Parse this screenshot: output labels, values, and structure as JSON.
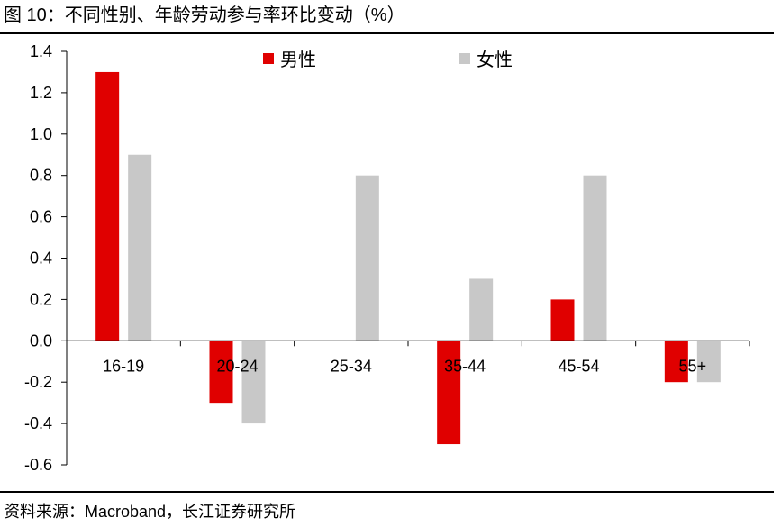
{
  "figure_title": "图 10：不同性别、年龄劳动参与率环比变动（%）",
  "source": "资料来源：Macroband，长江证券研究所",
  "chart_data": {
    "type": "bar",
    "title": "不同性别、年龄劳动参与率环比变动（%）",
    "categories": [
      "16-19",
      "20-24",
      "25-34",
      "35-44",
      "45-54",
      "55+"
    ],
    "series": [
      {
        "name": "男性",
        "color": "#e00000",
        "values": [
          1.3,
          -0.3,
          0.0,
          -0.5,
          0.2,
          -0.2
        ]
      },
      {
        "name": "女性",
        "color": "#c8c8c8",
        "values": [
          0.9,
          -0.4,
          0.8,
          0.3,
          0.8,
          -0.2
        ]
      }
    ],
    "ylim": [
      -0.6,
      1.4
    ],
    "yticks": [
      "1.4",
      "1.2",
      "1.0",
      "0.8",
      "0.6",
      "0.4",
      "0.2",
      "0.0",
      "-0.2",
      "-0.4",
      "-0.6"
    ],
    "xlabel": "",
    "ylabel": "",
    "grid": false,
    "legend_position": "top"
  }
}
